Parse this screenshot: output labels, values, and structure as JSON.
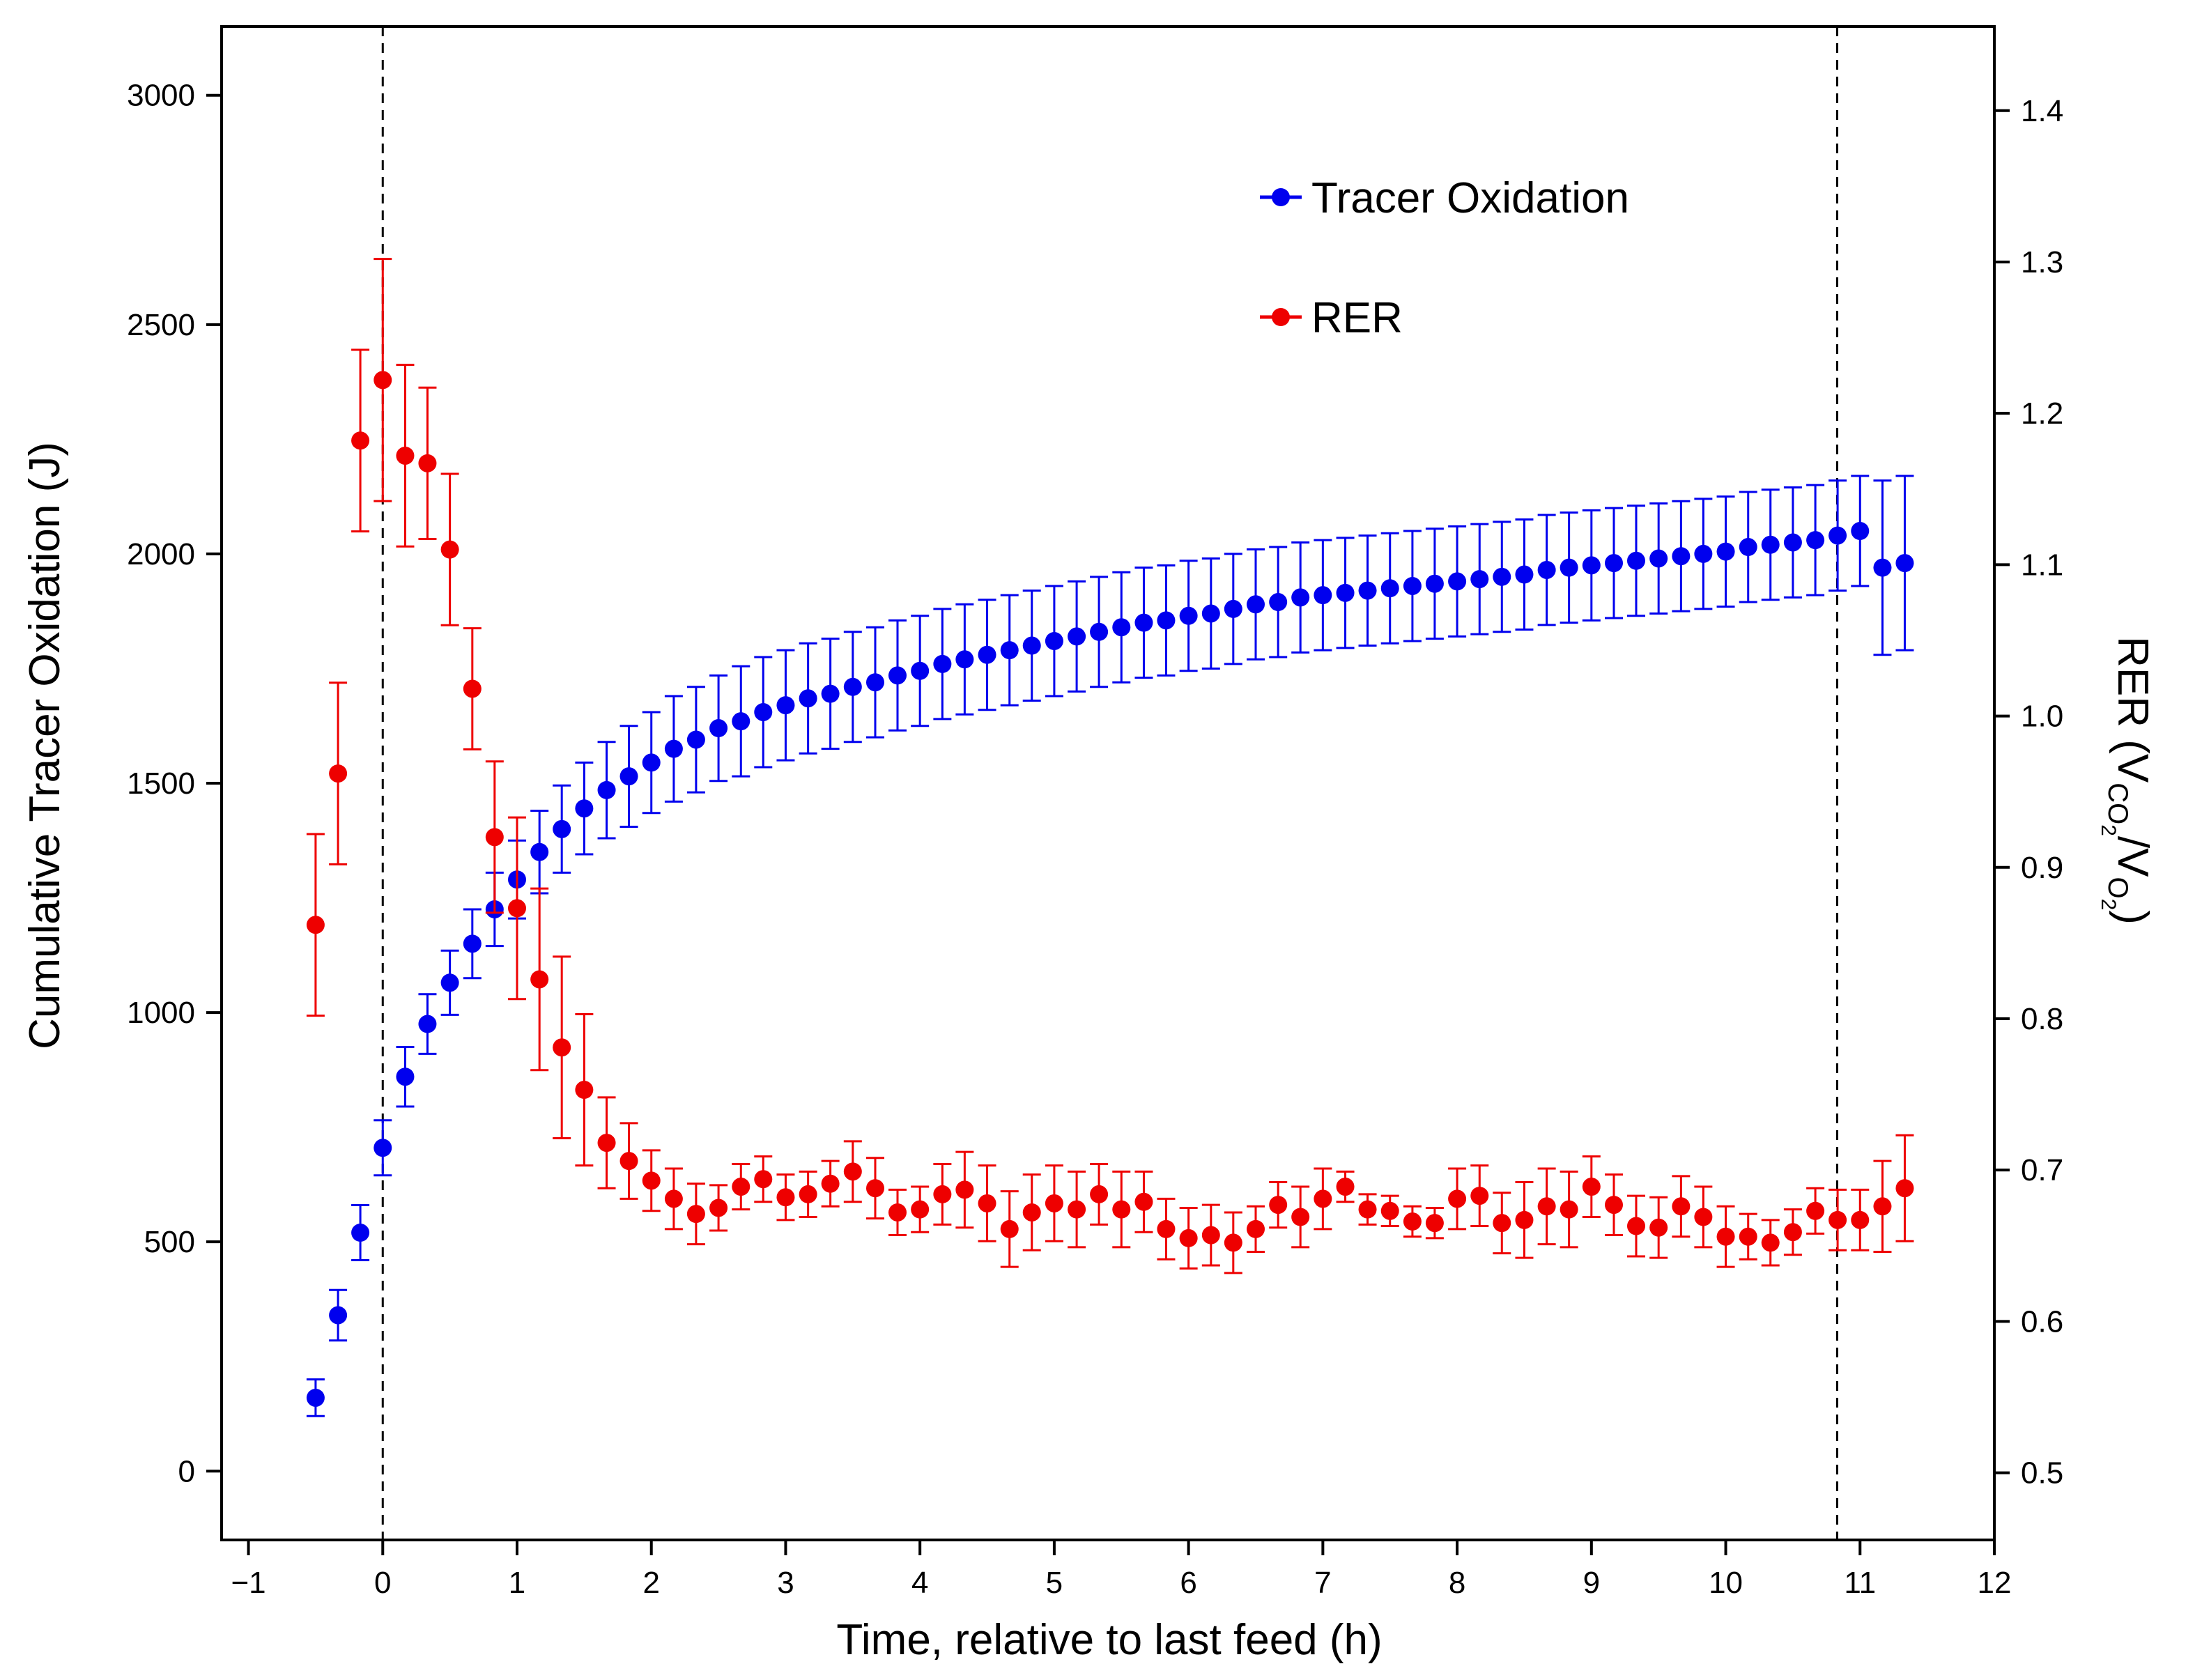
{
  "chart_data": {
    "type": "scatter",
    "xlabel": "Time, relative to last feed (h)",
    "ylabel_left": "Cumulative Tracer Oxidation (J)",
    "ylabel_right": {
      "prefix": "RER (",
      "vco": "V",
      "co_sub": "CO",
      "co_subsub": "2",
      "slash": "/",
      "vo": "V",
      "o_sub": "O",
      "o_subsub": "2",
      "suffix": ")"
    },
    "xlim": [
      -1.2,
      12
    ],
    "ylim_left": [
      -150,
      3150
    ],
    "ylim_right": [
      0.4556,
      1.4556
    ],
    "x_ticks": [
      -1,
      0,
      1,
      2,
      3,
      4,
      5,
      6,
      7,
      8,
      9,
      10,
      11,
      12
    ],
    "x_tick_labels": [
      "−1",
      "0",
      "1",
      "2",
      "3",
      "4",
      "5",
      "6",
      "7",
      "8",
      "9",
      "10",
      "11",
      "12"
    ],
    "y_left_ticks": [
      0,
      500,
      1000,
      1500,
      2000,
      2500,
      3000
    ],
    "y_left_tick_labels": [
      "0",
      "500",
      "1000",
      "1500",
      "2000",
      "2500",
      "3000"
    ],
    "y_right_ticks": [
      0.5,
      0.6,
      0.7,
      0.8,
      0.9,
      1.0,
      1.1,
      1.2,
      1.3,
      1.4
    ],
    "y_right_tick_labels": [
      "0.5",
      "0.6",
      "0.7",
      "0.8",
      "0.9",
      "1.0",
      "1.1",
      "1.2",
      "1.3",
      "1.4"
    ],
    "vlines": [
      0,
      10.83
    ],
    "legend": {
      "position": "top-center"
    },
    "series": [
      {
        "name": "Tracer Oxidation",
        "axis": "left",
        "color": "#0000ee",
        "x": [
          -0.5,
          -0.333,
          -0.167,
          0,
          0.167,
          0.333,
          0.5,
          0.667,
          0.833,
          1.0,
          1.167,
          1.333,
          1.5,
          1.667,
          1.833,
          2.0,
          2.167,
          2.333,
          2.5,
          2.667,
          2.833,
          3.0,
          3.167,
          3.333,
          3.5,
          3.667,
          3.833,
          4.0,
          4.167,
          4.333,
          4.5,
          4.667,
          4.833,
          5.0,
          5.167,
          5.333,
          5.5,
          5.667,
          5.833,
          6.0,
          6.167,
          6.333,
          6.5,
          6.667,
          6.833,
          7.0,
          7.167,
          7.333,
          7.5,
          7.667,
          7.833,
          8.0,
          8.167,
          8.333,
          8.5,
          8.667,
          8.833,
          9.0,
          9.167,
          9.333,
          9.5,
          9.667,
          9.833,
          10.0,
          10.167,
          10.333,
          10.5,
          10.667,
          10.833,
          11.0,
          11.167,
          11.333
        ],
        "y": [
          160,
          340,
          520,
          705,
          860,
          975,
          1065,
          1150,
          1225,
          1290,
          1350,
          1400,
          1445,
          1485,
          1515,
          1545,
          1575,
          1595,
          1620,
          1635,
          1655,
          1670,
          1685,
          1695,
          1710,
          1720,
          1735,
          1745,
          1760,
          1770,
          1780,
          1790,
          1800,
          1810,
          1820,
          1830,
          1840,
          1850,
          1855,
          1865,
          1870,
          1880,
          1890,
          1895,
          1905,
          1910,
          1915,
          1920,
          1925,
          1930,
          1935,
          1940,
          1945,
          1950,
          1955,
          1965,
          1970,
          1975,
          1980,
          1985,
          1990,
          1995,
          2000,
          2005,
          2015,
          2020,
          2025,
          2030,
          2040,
          2050,
          1970,
          1980
        ],
        "err": [
          40,
          55,
          60,
          60,
          65,
          65,
          70,
          75,
          80,
          85,
          90,
          95,
          100,
          105,
          110,
          110,
          115,
          115,
          115,
          120,
          120,
          120,
          120,
          120,
          120,
          120,
          120,
          120,
          120,
          120,
          120,
          120,
          120,
          120,
          120,
          120,
          120,
          120,
          120,
          120,
          120,
          120,
          120,
          120,
          120,
          120,
          120,
          120,
          120,
          120,
          120,
          120,
          120,
          120,
          120,
          120,
          120,
          120,
          120,
          120,
          120,
          120,
          120,
          120,
          120,
          120,
          120,
          120,
          120,
          120,
          190,
          190
        ]
      },
      {
        "name": "RER",
        "axis": "right",
        "color": "#ee0000",
        "x": [
          -0.5,
          -0.333,
          -0.167,
          0,
          0.167,
          0.333,
          0.5,
          0.667,
          0.833,
          1.0,
          1.167,
          1.333,
          1.5,
          1.667,
          1.833,
          2.0,
          2.167,
          2.333,
          2.5,
          2.667,
          2.833,
          3.0,
          3.167,
          3.333,
          3.5,
          3.667,
          3.833,
          4.0,
          4.167,
          4.333,
          4.5,
          4.667,
          4.833,
          5.0,
          5.167,
          5.333,
          5.5,
          5.667,
          5.833,
          6.0,
          6.167,
          6.333,
          6.5,
          6.667,
          6.833,
          7.0,
          7.167,
          7.333,
          7.5,
          7.667,
          7.833,
          8.0,
          8.167,
          8.333,
          8.5,
          8.667,
          8.833,
          9.0,
          9.167,
          9.333,
          9.5,
          9.667,
          9.833,
          10.0,
          10.167,
          10.333,
          10.5,
          10.667,
          10.833,
          11.0,
          11.167,
          11.333
        ],
        "y": [
          0.862,
          0.962,
          1.182,
          1.222,
          1.172,
          1.167,
          1.11,
          1.018,
          0.92,
          0.873,
          0.826,
          0.781,
          0.753,
          0.718,
          0.706,
          0.693,
          0.681,
          0.671,
          0.675,
          0.689,
          0.694,
          0.682,
          0.684,
          0.691,
          0.699,
          0.688,
          0.672,
          0.674,
          0.684,
          0.687,
          0.678,
          0.661,
          0.672,
          0.678,
          0.674,
          0.684,
          0.674,
          0.679,
          0.661,
          0.655,
          0.657,
          0.652,
          0.661,
          0.677,
          0.669,
          0.681,
          0.689,
          0.674,
          0.673,
          0.666,
          0.665,
          0.681,
          0.683,
          0.665,
          0.667,
          0.676,
          0.674,
          0.689,
          0.677,
          0.663,
          0.662,
          0.676,
          0.669,
          0.656,
          0.656,
          0.652,
          0.659,
          0.673,
          0.667,
          0.667,
          0.676,
          0.688
        ],
        "err": [
          0.06,
          0.06,
          0.06,
          0.08,
          0.06,
          0.05,
          0.05,
          0.04,
          0.05,
          0.06,
          0.06,
          0.06,
          0.05,
          0.03,
          0.025,
          0.02,
          0.02,
          0.02,
          0.015,
          0.015,
          0.015,
          0.015,
          0.015,
          0.015,
          0.02,
          0.02,
          0.015,
          0.015,
          0.02,
          0.025,
          0.025,
          0.025,
          0.025,
          0.025,
          0.025,
          0.02,
          0.025,
          0.02,
          0.02,
          0.02,
          0.02,
          0.02,
          0.015,
          0.015,
          0.02,
          0.02,
          0.01,
          0.01,
          0.01,
          0.01,
          0.01,
          0.02,
          0.02,
          0.02,
          0.025,
          0.025,
          0.025,
          0.02,
          0.02,
          0.02,
          0.02,
          0.02,
          0.02,
          0.02,
          0.015,
          0.015,
          0.015,
          0.015,
          0.02,
          0.02,
          0.03,
          0.035
        ]
      }
    ]
  }
}
